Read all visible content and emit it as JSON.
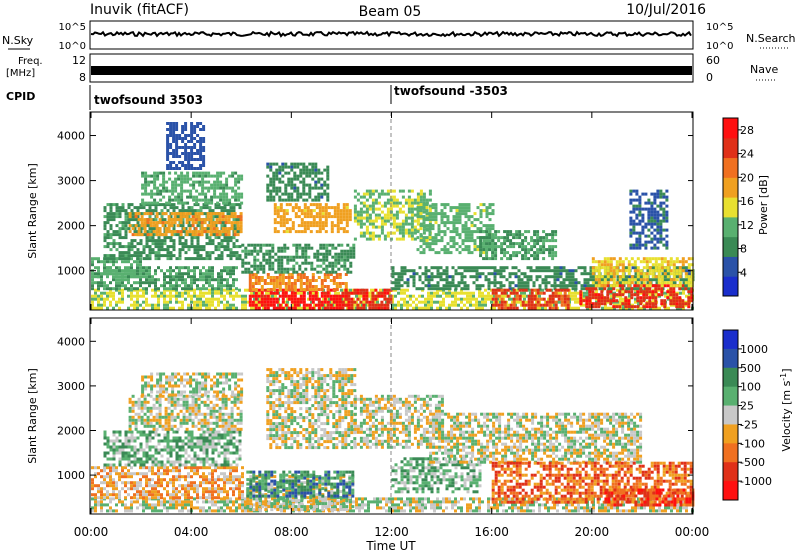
{
  "header": {
    "station": "Inuvik (fitACF)",
    "beam": "Beam 05",
    "date": "10/Jul/2016"
  },
  "aux_panels": {
    "nsky": {
      "label": "N.Sky",
      "top_tick": "10^5",
      "bottom_tick": "10^0",
      "right_top_tick": "10^5",
      "right_bottom_tick": "10^0",
      "right_label": "N.Search"
    },
    "freq": {
      "label_line1": "Freq.",
      "label_line2": "[MHz]",
      "top_tick": "12",
      "bottom_tick": "8",
      "right_top_tick": "60",
      "right_bottom_tick": "0",
      "right_label": "Nave"
    },
    "cpid": {
      "label": "CPID",
      "first": "twofsound 3503",
      "second": "twofsound -3503"
    }
  },
  "x_axis": {
    "label": "Time UT",
    "ticks": [
      "00:00",
      "04:00",
      "08:00",
      "12:00",
      "16:00",
      "20:00",
      "00:00"
    ]
  },
  "colors": {
    "power_scale": [
      "#1a2ecc",
      "#2a52a8",
      "#3a8a55",
      "#59b070",
      "#e8e030",
      "#f0a020",
      "#f07020",
      "#e03018",
      "#ff1010"
    ],
    "velocity_scale": [
      "#1a2ecc",
      "#2a52a8",
      "#3a8a55",
      "#59b070",
      "#c8c8c8",
      "#f0a020",
      "#f07020",
      "#e03018",
      "#ff1010"
    ]
  },
  "chart_data": [
    {
      "type": "heatmap",
      "name": "Power",
      "ylabel": "Slant Range [km]",
      "xlabel": "",
      "y_ticks": [
        "1000",
        "2000",
        "3000",
        "4000"
      ],
      "ylim": [
        150,
        4500
      ],
      "xlim": [
        0,
        24
      ],
      "colorbar_label": "Power [dB]",
      "colorbar_ticks": [
        "4",
        "8",
        "12",
        "16",
        "20",
        "24",
        "28"
      ],
      "colorbar_range": [
        0,
        30
      ],
      "regions": [
        {
          "t0": 0.0,
          "t1": 24.0,
          "r0": 200,
          "r1": 600,
          "v": 14
        },
        {
          "t0": 0.0,
          "t1": 5.8,
          "r0": 600,
          "r1": 1100,
          "v": 10
        },
        {
          "t0": 0.0,
          "t1": 2.0,
          "r0": 900,
          "r1": 1300,
          "v": 11
        },
        {
          "t0": 0.5,
          "t1": 6.0,
          "r0": 1300,
          "r1": 2500,
          "v": 9
        },
        {
          "t0": 1.5,
          "t1": 6.0,
          "r0": 1800,
          "r1": 2300,
          "v": 19
        },
        {
          "t0": 2.0,
          "t1": 6.0,
          "r0": 2500,
          "r1": 3200,
          "v": 11
        },
        {
          "t0": 3.0,
          "t1": 4.5,
          "r0": 3300,
          "r1": 4300,
          "v": 5
        },
        {
          "t0": 6.3,
          "t1": 10.2,
          "r0": 200,
          "r1": 600,
          "v": 28
        },
        {
          "t0": 6.3,
          "t1": 10.2,
          "r0": 600,
          "r1": 950,
          "v": 20
        },
        {
          "t0": 6.0,
          "t1": 10.5,
          "r0": 950,
          "r1": 1600,
          "v": 9
        },
        {
          "t0": 7.3,
          "t1": 10.3,
          "r0": 1900,
          "r1": 2500,
          "v": 18
        },
        {
          "t0": 7.0,
          "t1": 9.5,
          "r0": 2600,
          "r1": 3400,
          "v": 8
        },
        {
          "t0": 10.0,
          "t1": 12.0,
          "r0": 200,
          "r1": 600,
          "v": 26
        },
        {
          "t0": 10.5,
          "t1": 13.5,
          "r0": 1700,
          "r1": 2800,
          "v": 13
        },
        {
          "t0": 12.0,
          "t1": 24.0,
          "r0": 600,
          "r1": 1100,
          "v": 8
        },
        {
          "t0": 13.0,
          "t1": 16.0,
          "r0": 1400,
          "r1": 2500,
          "v": 12
        },
        {
          "t0": 15.5,
          "t1": 18.5,
          "r0": 1300,
          "r1": 1900,
          "v": 10
        },
        {
          "t0": 16.0,
          "t1": 19.0,
          "r0": 200,
          "r1": 600,
          "v": 24
        },
        {
          "t0": 19.5,
          "t1": 24.0,
          "r0": 200,
          "r1": 700,
          "v": 26
        },
        {
          "t0": 20.0,
          "t1": 24.0,
          "r0": 700,
          "r1": 1300,
          "v": 16
        },
        {
          "t0": 21.5,
          "t1": 23.0,
          "r0": 1500,
          "r1": 2800,
          "v": 6
        }
      ]
    },
    {
      "type": "heatmap",
      "name": "Velocity",
      "ylabel": "Slant Range [km]",
      "xlabel": "Time UT",
      "y_ticks": [
        "1000",
        "2000",
        "3000",
        "4000"
      ],
      "ylim": [
        150,
        4500
      ],
      "xlim": [
        0,
        24
      ],
      "colorbar_label": "Velocity [m s^-1]",
      "colorbar_ticks": [
        "1000",
        "500",
        "100",
        "25",
        "-25",
        "-100",
        "-500",
        "-1000"
      ],
      "regions": [
        {
          "t0": 0.0,
          "t1": 24.0,
          "r0": 200,
          "r1": 500,
          "v": 4
        },
        {
          "t0": 0.0,
          "t1": 6.0,
          "r0": 500,
          "r1": 1200,
          "v": 5
        },
        {
          "t0": 0.5,
          "t1": 6.0,
          "r0": 1200,
          "r1": 2000,
          "v": 3
        },
        {
          "t0": 1.5,
          "t1": 6.0,
          "r0": 2000,
          "r1": 2800,
          "v": 4
        },
        {
          "t0": 2.0,
          "t1": 6.0,
          "r0": 2800,
          "r1": 3300,
          "v": 4
        },
        {
          "t0": 6.2,
          "t1": 10.5,
          "r0": 200,
          "r1": 1000,
          "v": 4
        },
        {
          "t0": 6.2,
          "t1": 10.5,
          "r0": 500,
          "r1": 1100,
          "v": 2
        },
        {
          "t0": 7.0,
          "t1": 10.5,
          "r0": 1600,
          "r1": 3400,
          "v": 4
        },
        {
          "t0": 10.5,
          "t1": 14.0,
          "r0": 1600,
          "r1": 2800,
          "v": 4
        },
        {
          "t0": 12.0,
          "t1": 15.5,
          "r0": 600,
          "r1": 1400,
          "v": 3
        },
        {
          "t0": 13.5,
          "t1": 22.0,
          "r0": 1300,
          "r1": 2400,
          "v": 4
        },
        {
          "t0": 16.0,
          "t1": 24.0,
          "r0": 400,
          "r1": 1300,
          "v": 6
        },
        {
          "t0": 20.5,
          "t1": 24.0,
          "r0": 300,
          "r1": 700,
          "v": 7
        }
      ]
    }
  ]
}
